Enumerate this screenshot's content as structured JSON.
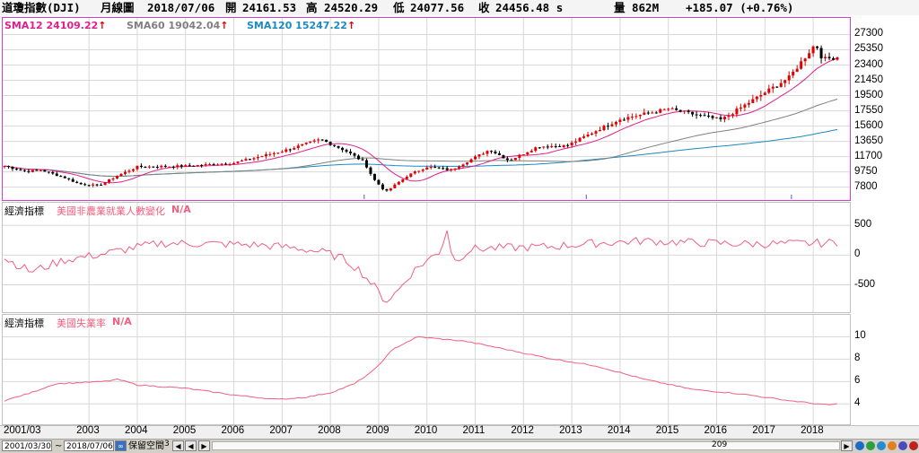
{
  "header": {
    "name": "道瓊指數(DJI)",
    "period": "月線圖",
    "date": "2018/07/06",
    "open_label": "開",
    "open": "24161.53",
    "high_label": "高",
    "high": "24520.29",
    "low_label": "低",
    "low": "24077.56",
    "close_label": "收",
    "close": "24456.48 s",
    "vol_label": "量",
    "vol": "862M",
    "change": "+185.07 (+0.76%)"
  },
  "legend": {
    "sma12": "SMA12 24109.22",
    "sma60": "SMA60 19042.04",
    "sma120": "SMA120 15247.22",
    "arrow": "↑"
  },
  "panel2": {
    "title": "經濟指標",
    "series": "美國非農業就業人數變化",
    "value": "N/A"
  },
  "panel3": {
    "title": "經濟指標",
    "series": "美國失業率",
    "value": "N/A"
  },
  "statusbar": {
    "from": "2001/03/30",
    "tilde": "~",
    "to": "2018/07/06",
    "keep_label": "保留空間",
    "keep_value": "3",
    "bar_count": "209"
  },
  "colors": {
    "candle_up": "#e00000",
    "candle_down": "#000000",
    "sma12": "#e0208a",
    "sma60": "#808080",
    "sma120": "#1a8ac0",
    "indicator": "#f06080",
    "grid": "#d8d8d8",
    "header_text": "#000000",
    "legend_arrow": "#e00000"
  },
  "chart_data": [
    {
      "type": "candlestick",
      "title": "道瓊指數(DJI) 月線圖",
      "x_labels": [
        "2001/03",
        "2003",
        "2004",
        "2005",
        "2006",
        "2007",
        "2008",
        "2009",
        "2010",
        "2011",
        "2012",
        "2013",
        "2014",
        "2015",
        "2016",
        "2017",
        "2018"
      ],
      "y_ticks": [
        7800,
        9750,
        11700,
        13650,
        15600,
        17550,
        19500,
        21450,
        23400,
        25350,
        27300
      ],
      "ylim": [
        6500,
        28500
      ],
      "close_anchors": [
        {
          "t": 2001.25,
          "v": 10500
        },
        {
          "t": 2001.7,
          "v": 9800
        },
        {
          "t": 2002.0,
          "v": 10000
        },
        {
          "t": 2002.5,
          "v": 9000
        },
        {
          "t": 2002.8,
          "v": 8200
        },
        {
          "t": 2003.2,
          "v": 8000
        },
        {
          "t": 2003.6,
          "v": 9300
        },
        {
          "t": 2004.0,
          "v": 10400
        },
        {
          "t": 2005.0,
          "v": 10500
        },
        {
          "t": 2006.0,
          "v": 10900
        },
        {
          "t": 2007.0,
          "v": 12400
        },
        {
          "t": 2007.8,
          "v": 13900
        },
        {
          "t": 2008.3,
          "v": 12500
        },
        {
          "t": 2008.7,
          "v": 11000
        },
        {
          "t": 2008.9,
          "v": 8800
        },
        {
          "t": 2009.15,
          "v": 7200
        },
        {
          "t": 2009.6,
          "v": 9300
        },
        {
          "t": 2010.0,
          "v": 10400
        },
        {
          "t": 2010.5,
          "v": 10000
        },
        {
          "t": 2011.3,
          "v": 12600
        },
        {
          "t": 2011.7,
          "v": 11200
        },
        {
          "t": 2012.3,
          "v": 13000
        },
        {
          "t": 2012.9,
          "v": 13100
        },
        {
          "t": 2013.5,
          "v": 15000
        },
        {
          "t": 2014.0,
          "v": 16500
        },
        {
          "t": 2015.0,
          "v": 17800
        },
        {
          "t": 2015.6,
          "v": 17000
        },
        {
          "t": 2016.1,
          "v": 16400
        },
        {
          "t": 2016.9,
          "v": 19500
        },
        {
          "t": 2017.5,
          "v": 21800
        },
        {
          "t": 2018.05,
          "v": 26150
        },
        {
          "t": 2018.2,
          "v": 24100
        },
        {
          "t": 2018.5,
          "v": 24456
        }
      ],
      "series": [
        {
          "name": "SMA12",
          "value": 24109.22
        },
        {
          "name": "SMA60",
          "value": 19042.04
        },
        {
          "name": "SMA120",
          "value": 15247.22
        }
      ]
    },
    {
      "type": "line",
      "title": "美國非農業就業人數變化",
      "y_ticks": [
        -500,
        0,
        500
      ],
      "ylim": [
        -900,
        700
      ],
      "anchors": [
        {
          "t": 2001.25,
          "v": -50
        },
        {
          "t": 2001.8,
          "v": -280
        },
        {
          "t": 2002.5,
          "v": -80
        },
        {
          "t": 2003.3,
          "v": 20
        },
        {
          "t": 2003.9,
          "v": 120
        },
        {
          "t": 2004.5,
          "v": 200
        },
        {
          "t": 2005.5,
          "v": 190
        },
        {
          "t": 2006.5,
          "v": 170
        },
        {
          "t": 2007.3,
          "v": 120
        },
        {
          "t": 2007.9,
          "v": 40
        },
        {
          "t": 2008.3,
          "v": -70
        },
        {
          "t": 2008.6,
          "v": -250
        },
        {
          "t": 2008.9,
          "v": -520
        },
        {
          "t": 2009.15,
          "v": -780
        },
        {
          "t": 2009.4,
          "v": -600
        },
        {
          "t": 2009.7,
          "v": -280
        },
        {
          "t": 2009.95,
          "v": -120
        },
        {
          "t": 2010.3,
          "v": 80
        },
        {
          "t": 2010.4,
          "v": 500
        },
        {
          "t": 2010.55,
          "v": -120
        },
        {
          "t": 2010.9,
          "v": 100
        },
        {
          "t": 2011.5,
          "v": 120
        },
        {
          "t": 2012.5,
          "v": 140
        },
        {
          "t": 2013.5,
          "v": 200
        },
        {
          "t": 2014.5,
          "v": 240
        },
        {
          "t": 2015.5,
          "v": 210
        },
        {
          "t": 2016.5,
          "v": 190
        },
        {
          "t": 2017.5,
          "v": 190
        },
        {
          "t": 2018.5,
          "v": 210
        }
      ]
    },
    {
      "type": "line",
      "title": "美國失業率",
      "y_ticks": [
        4,
        6,
        8,
        10
      ],
      "ylim": [
        2.5,
        11
      ],
      "anchors": [
        {
          "t": 2001.25,
          "v": 4.3
        },
        {
          "t": 2001.8,
          "v": 5.0
        },
        {
          "t": 2002.3,
          "v": 5.8
        },
        {
          "t": 2003.3,
          "v": 6.0
        },
        {
          "t": 2003.6,
          "v": 6.2
        },
        {
          "t": 2004.0,
          "v": 5.7
        },
        {
          "t": 2005.0,
          "v": 5.4
        },
        {
          "t": 2006.0,
          "v": 4.8
        },
        {
          "t": 2006.9,
          "v": 4.4
        },
        {
          "t": 2007.5,
          "v": 4.6
        },
        {
          "t": 2008.0,
          "v": 5.0
        },
        {
          "t": 2008.5,
          "v": 5.8
        },
        {
          "t": 2008.9,
          "v": 7.0
        },
        {
          "t": 2009.3,
          "v": 8.9
        },
        {
          "t": 2009.8,
          "v": 10.0
        },
        {
          "t": 2010.3,
          "v": 9.8
        },
        {
          "t": 2010.8,
          "v": 9.6
        },
        {
          "t": 2011.5,
          "v": 9.0
        },
        {
          "t": 2012.5,
          "v": 8.1
        },
        {
          "t": 2013.5,
          "v": 7.4
        },
        {
          "t": 2014.5,
          "v": 6.2
        },
        {
          "t": 2015.5,
          "v": 5.3
        },
        {
          "t": 2016.5,
          "v": 4.9
        },
        {
          "t": 2017.5,
          "v": 4.3
        },
        {
          "t": 2018.3,
          "v": 3.9
        },
        {
          "t": 2018.5,
          "v": 4.0
        }
      ]
    }
  ]
}
